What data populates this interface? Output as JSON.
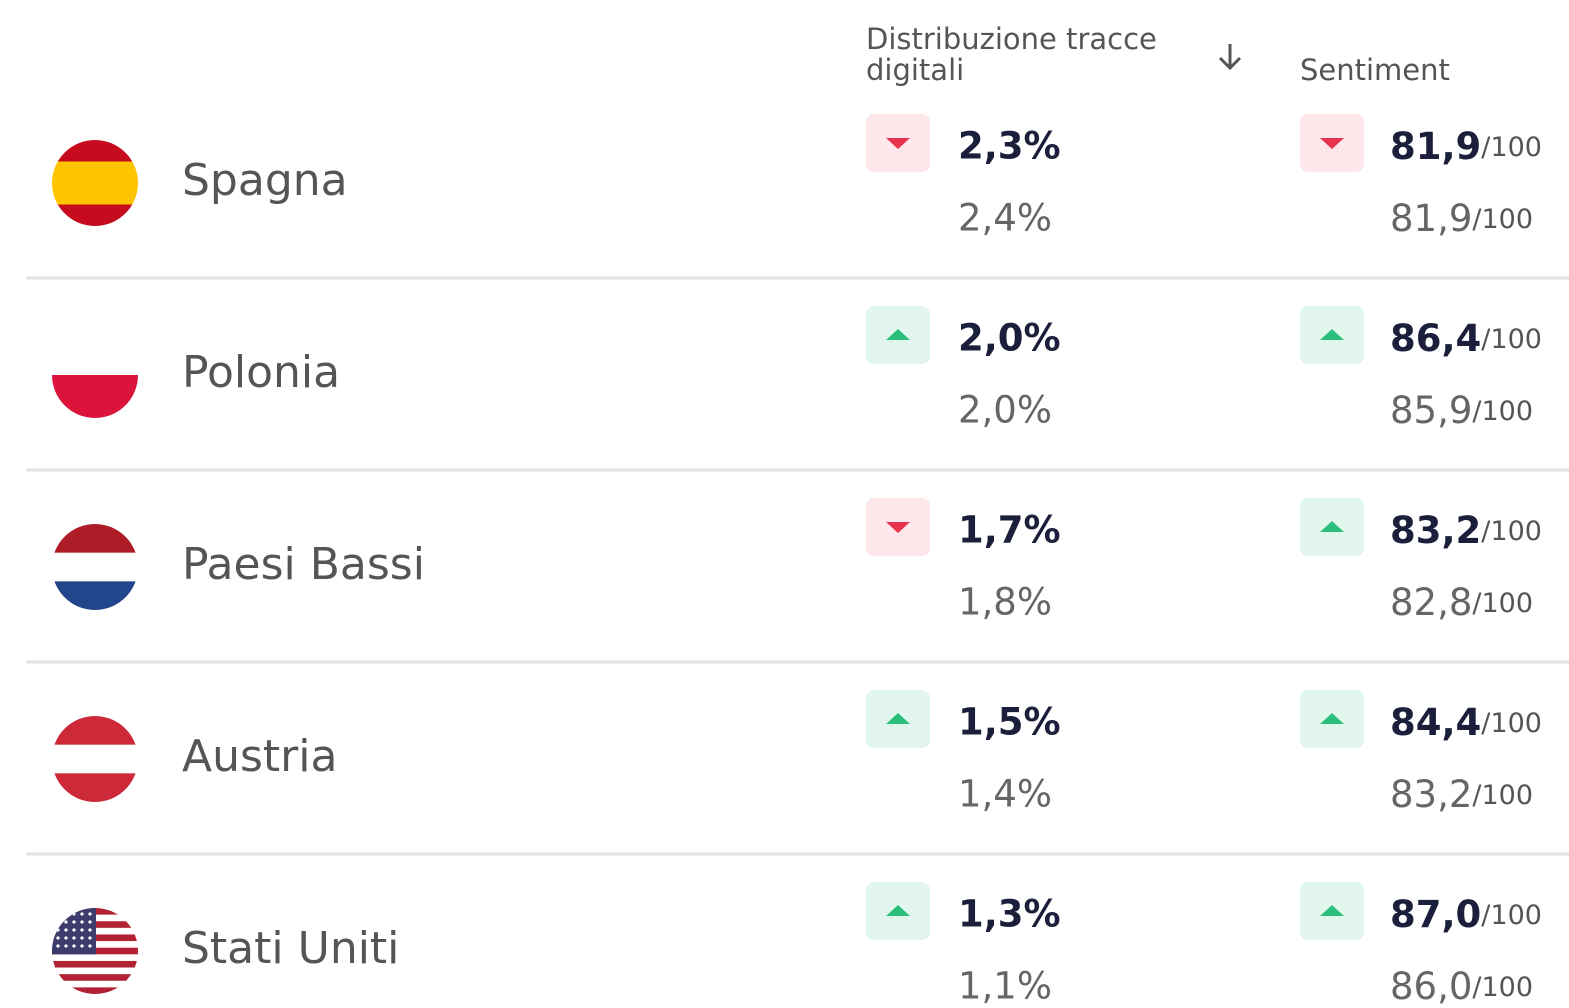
{
  "table": {
    "columns": [
      "Distribuzione tracce digitali",
      "Sentiment"
    ],
    "sentiment_suffix": "/100",
    "rows": [
      {
        "country": "Spagna",
        "dist": "2,3%",
        "dist_prev": "2,4%",
        "dist_trend": "down",
        "sentiment": "81,9",
        "sentiment_prev": "81,9",
        "sentiment_trend": "down"
      },
      {
        "country": "Polonia",
        "dist": "2,0%",
        "dist_prev": "2,0%",
        "dist_trend": "up",
        "sentiment": "86,4",
        "sentiment_prev": "85,9",
        "sentiment_trend": "up"
      },
      {
        "country": "Paesi Bassi",
        "dist": "1,7%",
        "dist_prev": "1,8%",
        "dist_trend": "down",
        "sentiment": "83,2",
        "sentiment_prev": "82,8",
        "sentiment_trend": "up"
      },
      {
        "country": "Austria",
        "dist": "1,5%",
        "dist_prev": "1,4%",
        "dist_trend": "up",
        "sentiment": "84,4",
        "sentiment_prev": "83,2",
        "sentiment_trend": "up"
      },
      {
        "country": "Stati Uniti",
        "dist": "1,3%",
        "dist_prev": "1,1%",
        "dist_trend": "up",
        "sentiment": "87,0",
        "sentiment_prev": "86,0",
        "sentiment_trend": "up"
      }
    ]
  }
}
